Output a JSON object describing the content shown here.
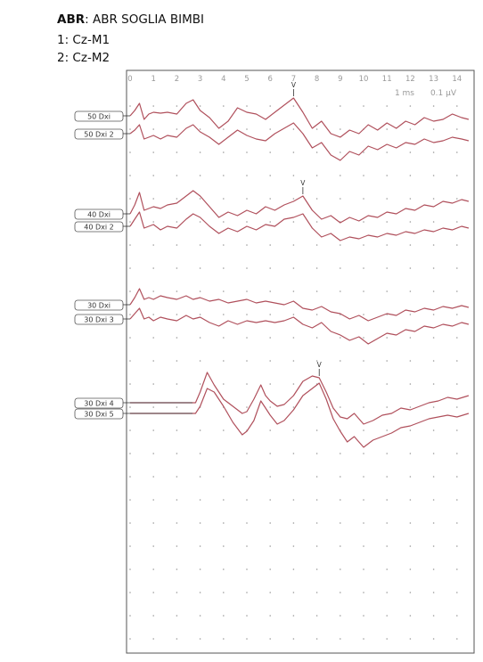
{
  "header": {
    "test_label": "ABR",
    "test_title": ": ABR SOGLIA BIMBI",
    "channel_1": "1: Cz-M1",
    "channel_2": "2: Cz-M2"
  },
  "chart_data": {
    "type": "line",
    "title": "",
    "x_ticks": [
      "0",
      "1",
      "2",
      "3",
      "4",
      "5",
      "6",
      "7",
      "8",
      "9",
      "10",
      "11",
      "12",
      "13",
      "14"
    ],
    "xlim": [
      0,
      14.5
    ],
    "scale_time": "1 ms",
    "scale_amp": "0.1 μV",
    "grid": "dotted",
    "colors": {
      "trace": "#b0505c",
      "frame": "#555555",
      "grid": "#9a9a9a"
    },
    "groups": [
      {
        "traces": [
          {
            "name": "50 Dxi",
            "peak_label": "V",
            "peak_ms": 7.0,
            "x": [
              0,
              0.2,
              0.4,
              0.6,
              0.8,
              1.0,
              1.3,
              1.6,
              2.0,
              2.4,
              2.7,
              3.0,
              3.4,
              3.8,
              4.2,
              4.6,
              5.0,
              5.4,
              5.8,
              6.2,
              6.6,
              7.0,
              7.4,
              7.8,
              8.2,
              8.6,
              9.0,
              9.4,
              9.8,
              10.2,
              10.6,
              11.0,
              11.4,
              11.8,
              12.2,
              12.6,
              13.0,
              13.4,
              13.8,
              14.2,
              14.5
            ],
            "y": [
              0,
              6,
              14,
              -4,
              2,
              4,
              3,
              4,
              2,
              14,
              18,
              6,
              -2,
              -14,
              -6,
              9,
              4,
              2,
              -4,
              4,
              12,
              20,
              4,
              -14,
              -6,
              -20,
              -24,
              -16,
              -20,
              -10,
              -16,
              -8,
              -14,
              -6,
              -10,
              -2,
              -6,
              -4,
              2,
              -2,
              -4
            ]
          },
          {
            "name": "50 Dxi 2",
            "peak_label": "",
            "peak_ms": null,
            "x": [
              0,
              0.2,
              0.4,
              0.6,
              0.8,
              1.0,
              1.3,
              1.6,
              2.0,
              2.4,
              2.7,
              3.0,
              3.4,
              3.8,
              4.2,
              4.6,
              5.0,
              5.4,
              5.8,
              6.2,
              6.6,
              7.0,
              7.4,
              7.8,
              8.2,
              8.6,
              9.0,
              9.4,
              9.8,
              10.2,
              10.6,
              11.0,
              11.4,
              11.8,
              12.2,
              12.6,
              13.0,
              13.4,
              13.8,
              14.2,
              14.5
            ],
            "y": [
              0,
              4,
              10,
              -6,
              -4,
              -2,
              -6,
              -2,
              -4,
              6,
              10,
              2,
              -4,
              -12,
              -4,
              4,
              -2,
              -6,
              -8,
              0,
              6,
              12,
              0,
              -16,
              -10,
              -24,
              -30,
              -20,
              -24,
              -14,
              -18,
              -12,
              -16,
              -10,
              -12,
              -6,
              -10,
              -8,
              -4,
              -6,
              -8
            ]
          }
        ]
      },
      {
        "traces": [
          {
            "name": "40 Dxi",
            "peak_label": "V",
            "peak_ms": 7.4,
            "x": [
              0,
              0.2,
              0.4,
              0.6,
              0.8,
              1.0,
              1.3,
              1.6,
              2.0,
              2.4,
              2.7,
              3.0,
              3.4,
              3.8,
              4.2,
              4.6,
              5.0,
              5.4,
              5.8,
              6.2,
              6.6,
              7.0,
              7.4,
              7.8,
              8.2,
              8.6,
              9.0,
              9.4,
              9.8,
              10.2,
              10.6,
              11.0,
              11.4,
              11.8,
              12.2,
              12.6,
              13.0,
              13.4,
              13.8,
              14.2,
              14.5
            ],
            "y": [
              0,
              10,
              24,
              4,
              6,
              8,
              6,
              10,
              12,
              20,
              26,
              20,
              8,
              -4,
              2,
              -2,
              4,
              0,
              8,
              4,
              10,
              14,
              20,
              4,
              -6,
              -2,
              -10,
              -4,
              -8,
              -2,
              -4,
              2,
              0,
              6,
              4,
              10,
              8,
              14,
              12,
              16,
              14
            ]
          },
          {
            "name": "40 Dxi 2",
            "peak_label": "",
            "peak_ms": null,
            "x": [
              0,
              0.2,
              0.4,
              0.6,
              0.8,
              1.0,
              1.3,
              1.6,
              2.0,
              2.4,
              2.7,
              3.0,
              3.4,
              3.8,
              4.2,
              4.6,
              5.0,
              5.4,
              5.8,
              6.2,
              6.6,
              7.0,
              7.4,
              7.8,
              8.2,
              8.6,
              9.0,
              9.4,
              9.8,
              10.2,
              10.6,
              11.0,
              11.4,
              11.8,
              12.2,
              12.6,
              13.0,
              13.4,
              13.8,
              14.2,
              14.5
            ],
            "y": [
              0,
              8,
              16,
              -2,
              0,
              2,
              -4,
              0,
              -2,
              8,
              14,
              10,
              0,
              -8,
              -2,
              -6,
              0,
              -4,
              2,
              0,
              8,
              10,
              14,
              -2,
              -12,
              -8,
              -16,
              -12,
              -14,
              -10,
              -12,
              -8,
              -10,
              -6,
              -8,
              -4,
              -6,
              -2,
              -4,
              0,
              -2
            ]
          }
        ]
      },
      {
        "traces": [
          {
            "name": "30 Dxi",
            "peak_label": "",
            "peak_ms": null,
            "x": [
              0,
              0.2,
              0.4,
              0.6,
              0.8,
              1.0,
              1.3,
              1.6,
              2.0,
              2.4,
              2.7,
              3.0,
              3.4,
              3.8,
              4.2,
              4.6,
              5.0,
              5.4,
              5.8,
              6.2,
              6.6,
              7.0,
              7.4,
              7.8,
              8.2,
              8.6,
              9.0,
              9.4,
              9.8,
              10.2,
              10.6,
              11.0,
              11.4,
              11.8,
              12.2,
              12.6,
              13.0,
              13.4,
              13.8,
              14.2,
              14.5
            ],
            "y": [
              0,
              8,
              18,
              6,
              8,
              6,
              10,
              8,
              6,
              10,
              6,
              8,
              4,
              6,
              2,
              4,
              6,
              2,
              4,
              2,
              0,
              4,
              -4,
              -6,
              -2,
              -8,
              -10,
              -16,
              -12,
              -18,
              -14,
              -10,
              -12,
              -6,
              -8,
              -4,
              -6,
              -2,
              -4,
              -1,
              -3
            ]
          },
          {
            "name": "30 Dxi 3",
            "peak_label": "",
            "peak_ms": null,
            "x": [
              0,
              0.2,
              0.4,
              0.6,
              0.8,
              1.0,
              1.3,
              1.6,
              2.0,
              2.4,
              2.7,
              3.0,
              3.4,
              3.8,
              4.2,
              4.6,
              5.0,
              5.4,
              5.8,
              6.2,
              6.6,
              7.0,
              7.4,
              7.8,
              8.2,
              8.6,
              9.0,
              9.4,
              9.8,
              10.2,
              10.6,
              11.0,
              11.4,
              11.8,
              12.2,
              12.6,
              13.0,
              13.4,
              13.8,
              14.2,
              14.5
            ],
            "y": [
              0,
              6,
              12,
              0,
              2,
              -2,
              2,
              0,
              -2,
              4,
              0,
              2,
              -4,
              -8,
              -2,
              -6,
              -2,
              -4,
              -2,
              -4,
              -2,
              2,
              -6,
              -10,
              -4,
              -14,
              -18,
              -24,
              -20,
              -28,
              -22,
              -16,
              -18,
              -12,
              -14,
              -8,
              -10,
              -6,
              -8,
              -4,
              -6
            ]
          }
        ]
      },
      {
        "traces": [
          {
            "name": "30 Dxi 4",
            "peak_label": "V",
            "peak_ms": 8.1,
            "x": [
              0,
              2.8,
              3.0,
              3.3,
              3.6,
              4.0,
              4.4,
              4.8,
              5.0,
              5.3,
              5.6,
              5.8,
              6.0,
              6.3,
              6.6,
              7.0,
              7.4,
              7.8,
              8.1,
              8.4,
              8.7,
              9.0,
              9.3,
              9.6,
              10.0,
              10.4,
              10.8,
              11.2,
              11.6,
              12.0,
              12.4,
              12.8,
              13.2,
              13.6,
              14.0,
              14.5
            ],
            "y": [
              0,
              0,
              12,
              34,
              20,
              4,
              -4,
              -12,
              -10,
              4,
              20,
              8,
              2,
              -4,
              -2,
              8,
              24,
              30,
              28,
              12,
              -6,
              -16,
              -18,
              -12,
              -24,
              -20,
              -14,
              -12,
              -6,
              -8,
              -4,
              0,
              2,
              6,
              4,
              8
            ]
          },
          {
            "name": "30 Dxi 5",
            "peak_label": "",
            "peak_ms": null,
            "x": [
              0,
              2.8,
              3.0,
              3.3,
              3.6,
              4.0,
              4.4,
              4.8,
              5.0,
              5.3,
              5.6,
              5.8,
              6.0,
              6.3,
              6.6,
              7.0,
              7.4,
              7.8,
              8.1,
              8.4,
              8.7,
              9.0,
              9.3,
              9.6,
              10.0,
              10.4,
              10.8,
              11.2,
              11.6,
              12.0,
              12.4,
              12.8,
              13.2,
              13.6,
              14.0,
              14.5
            ],
            "y": [
              0,
              0,
              8,
              28,
              24,
              8,
              -10,
              -24,
              -20,
              -8,
              14,
              6,
              -2,
              -12,
              -8,
              4,
              20,
              28,
              34,
              16,
              -6,
              -20,
              -32,
              -26,
              -38,
              -30,
              -26,
              -22,
              -16,
              -14,
              -10,
              -6,
              -4,
              -2,
              -4,
              0
            ]
          }
        ]
      }
    ]
  }
}
